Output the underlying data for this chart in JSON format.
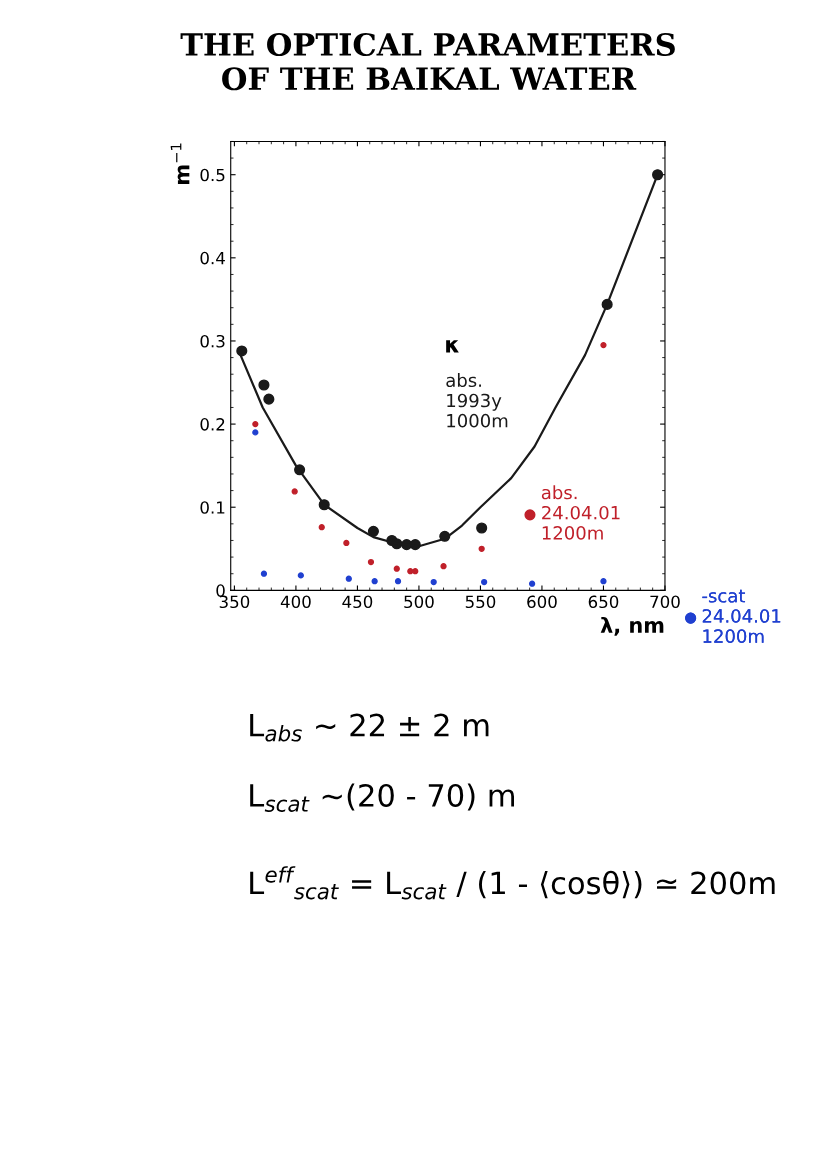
{
  "chart_data": {
    "type": "scatter",
    "title": "THE OPTICAL PARAMETERS\nOF THE BAIKAL WATER",
    "xlabel": "λ, nm",
    "ylabel": "m$^{−1}$",
    "xlim": [
      347,
      700
    ],
    "ylim": [
      0,
      0.54
    ],
    "xticks": [
      350,
      400,
      450,
      500,
      550,
      600,
      650,
      700
    ],
    "yticks": [
      0,
      0.1,
      0.2,
      0.3,
      0.4,
      0.5
    ],
    "grid": false,
    "legend": "right",
    "marker": "circle",
    "series": [
      {
        "name": "abs.\n1993y\n1000m",
        "color": "#1a1a1a",
        "x": [
          356,
          374,
          378,
          403,
          423,
          463,
          478,
          482,
          490,
          497,
          521,
          551,
          653,
          694
        ],
        "values": [
          0.288,
          0.247,
          0.23,
          0.145,
          0.103,
          0.071,
          0.06,
          0.056,
          0.055,
          0.055,
          0.065,
          0.075,
          0.344,
          0.5
        ]
      },
      {
        "type": "line",
        "marker": "none",
        "color": "#1a1a1a",
        "x": [
          355,
          373,
          400,
          423,
          450,
          463,
          480,
          500,
          521,
          535,
          550,
          575,
          594,
          611,
          635,
          653,
          694
        ],
        "values": [
          0.283,
          0.22,
          0.15,
          0.103,
          0.075,
          0.064,
          0.057,
          0.053,
          0.062,
          0.078,
          0.1,
          0.135,
          0.173,
          0.22,
          0.283,
          0.344,
          0.5
        ]
      },
      {
        "name": "abs.\n24.04.01\n1200m",
        "color": "#c0202a",
        "x": [
          367,
          399,
          421,
          441,
          461,
          482,
          493,
          497,
          520,
          551,
          650
        ],
        "values": [
          0.2,
          0.119,
          0.076,
          0.057,
          0.034,
          0.026,
          0.023,
          0.023,
          0.029,
          0.05,
          0.295
        ]
      },
      {
        "name": "-scat\n24.04.01\n1200m",
        "color": "#2040d0",
        "x": [
          367,
          374,
          404,
          443,
          464,
          483,
          512,
          553,
          592,
          650
        ],
        "values": [
          0.19,
          0.02,
          0.018,
          0.014,
          0.011,
          0.011,
          0.01,
          0.01,
          0.008,
          0.011
        ]
      }
    ],
    "annotations": [
      "κ",
      "L$_{abs}$ ~ 22 ± 2 m",
      "L$_{scat}$ ~(20 - 70) m",
      "L$^{eff}$$_{scat}$ = L$_{scat}$ / (1 - ⟨cosθ⟩) ≃ 200m"
    ]
  }
}
